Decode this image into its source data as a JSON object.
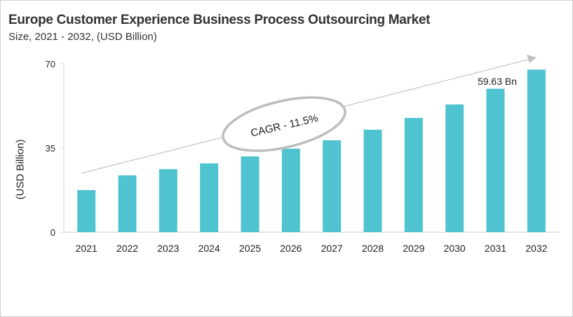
{
  "chart_data": {
    "type": "bar",
    "title": "Europe Customer Experience Business Process Outsourcing Market",
    "subtitle": "Size, 2021 - 2032, (USD Billion)",
    "xlabel": "",
    "ylabel": "(USD Billion)",
    "ylim": [
      0,
      70
    ],
    "yticks": [
      "0",
      "35",
      "70"
    ],
    "grid": false,
    "categories": [
      "2021",
      "2022",
      "2023",
      "2024",
      "2025",
      "2026",
      "2027",
      "2028",
      "2029",
      "2030",
      "2031",
      "2032"
    ],
    "values": [
      17.5,
      23.6,
      26.2,
      28.6,
      31.5,
      34.7,
      38.2,
      42.6,
      47.5,
      53.1,
      59.63,
      67.6
    ],
    "bar_color": "#4fc3cf",
    "annotations": {
      "data_label": "59.63 Bn",
      "data_label_category": "2031",
      "cagr": "CAGR - 11.5%"
    }
  }
}
